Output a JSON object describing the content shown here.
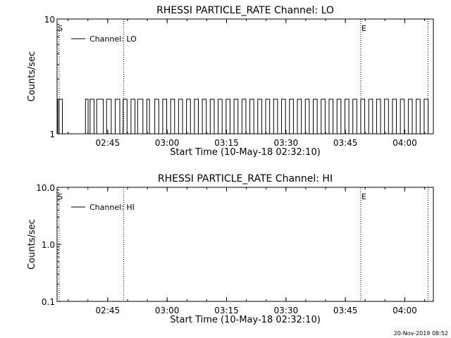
{
  "footer": {
    "timestamp": "20-Nov-2019 08:52"
  },
  "chart_data": [
    {
      "type": "line",
      "title": "RHESSI PARTICLE_RATE Channel: LO",
      "xlabel": "Start Time (10-May-18 02:32:10)",
      "ylabel": "Counts/sec",
      "y_scale": "log",
      "ylim": [
        1,
        10
      ],
      "y_ticks": [
        {
          "value": 1,
          "label": "1"
        },
        {
          "value": 10,
          "label": "10"
        }
      ],
      "x_range_seconds": [
        0,
        5700
      ],
      "x_ticks": [
        {
          "t": 767,
          "label": "02:45"
        },
        {
          "t": 1667,
          "label": "03:00"
        },
        {
          "t": 2567,
          "label": "03:15"
        },
        {
          "t": 3467,
          "label": "03:30"
        },
        {
          "t": 4367,
          "label": "03:45"
        },
        {
          "t": 5267,
          "label": "04:00"
        }
      ],
      "vlines": [
        {
          "t": 1010,
          "label": ""
        },
        {
          "t": 4600,
          "label": "E"
        },
        {
          "t": 5620,
          "label": ""
        },
        {
          "t": 0,
          "label": "S"
        }
      ],
      "legend": {
        "label": "Channel: LO",
        "position": "top-left"
      },
      "series": [
        {
          "name": "Channel: LO",
          "x": [
            0,
            10,
            30,
            60,
            80,
            100,
            430,
            470,
            500,
            560,
            600,
            700,
            750,
            820,
            880,
            950,
            1000,
            1060,
            1120,
            1180,
            1220,
            1300,
            1360,
            1400,
            1480,
            1540,
            1600,
            1660,
            1720,
            1780,
            1840,
            1900,
            1960,
            2020,
            2080,
            2140,
            2200,
            2260,
            2320,
            2380,
            2440,
            2500,
            2560,
            2620,
            2680,
            2740,
            2800,
            2860,
            2920,
            2980,
            3040,
            3100,
            3160,
            3220,
            3280,
            3340,
            3400,
            3460,
            3520,
            3580,
            3640,
            3700,
            3760,
            3820,
            3880,
            3940,
            4000,
            4060,
            4120,
            4180,
            4240,
            4300,
            4360,
            4420,
            4480,
            4540,
            4600,
            4660,
            4720,
            4780,
            4840,
            4900,
            4960,
            5020,
            5080,
            5140,
            5200,
            5260,
            5320,
            5380,
            5440,
            5500,
            5560,
            5620
          ],
          "y": [
            2,
            1,
            2,
            2,
            1,
            1,
            2,
            1,
            2,
            1,
            2,
            1,
            2,
            1,
            2,
            1,
            2,
            1,
            2,
            1,
            2,
            1,
            2,
            1,
            2,
            1,
            2,
            1,
            2,
            1,
            2,
            1,
            2,
            1,
            2,
            1,
            2,
            1,
            2,
            1,
            2,
            1,
            2,
            1,
            2,
            1,
            2,
            1,
            2,
            1,
            2,
            1,
            2,
            1,
            2,
            1,
            2,
            1,
            2,
            1,
            2,
            1,
            2,
            1,
            2,
            1,
            2,
            1,
            2,
            1,
            2,
            1,
            2,
            1,
            2,
            1,
            2,
            1,
            2,
            1,
            2,
            1,
            2,
            1,
            2,
            1,
            2,
            1,
            2,
            1,
            2,
            1,
            2,
            1
          ]
        }
      ]
    },
    {
      "type": "line",
      "title": "RHESSI PARTICLE_RATE Channel: HI",
      "xlabel": "Start Time (10-May-18 02:32:10)",
      "ylabel": "Counts/sec",
      "y_scale": "log",
      "ylim": [
        0.1,
        10
      ],
      "y_ticks": [
        {
          "value": 0.1,
          "label": "0.1"
        },
        {
          "value": 1,
          "label": "1.0"
        },
        {
          "value": 10,
          "label": "10.0"
        }
      ],
      "x_range_seconds": [
        0,
        5700
      ],
      "x_ticks": [
        {
          "t": 767,
          "label": "02:45"
        },
        {
          "t": 1667,
          "label": "03:00"
        },
        {
          "t": 2567,
          "label": "03:15"
        },
        {
          "t": 3467,
          "label": "03:30"
        },
        {
          "t": 4367,
          "label": "03:45"
        },
        {
          "t": 5267,
          "label": "04:00"
        }
      ],
      "vlines": [
        {
          "t": 1010,
          "label": ""
        },
        {
          "t": 4600,
          "label": "E"
        },
        {
          "t": 5620,
          "label": ""
        },
        {
          "t": 0,
          "label": "S"
        }
      ],
      "legend": {
        "label": "Channel: HI",
        "position": "top-left"
      },
      "series": [
        {
          "name": "Channel: HI",
          "x": [],
          "y": []
        }
      ]
    }
  ]
}
